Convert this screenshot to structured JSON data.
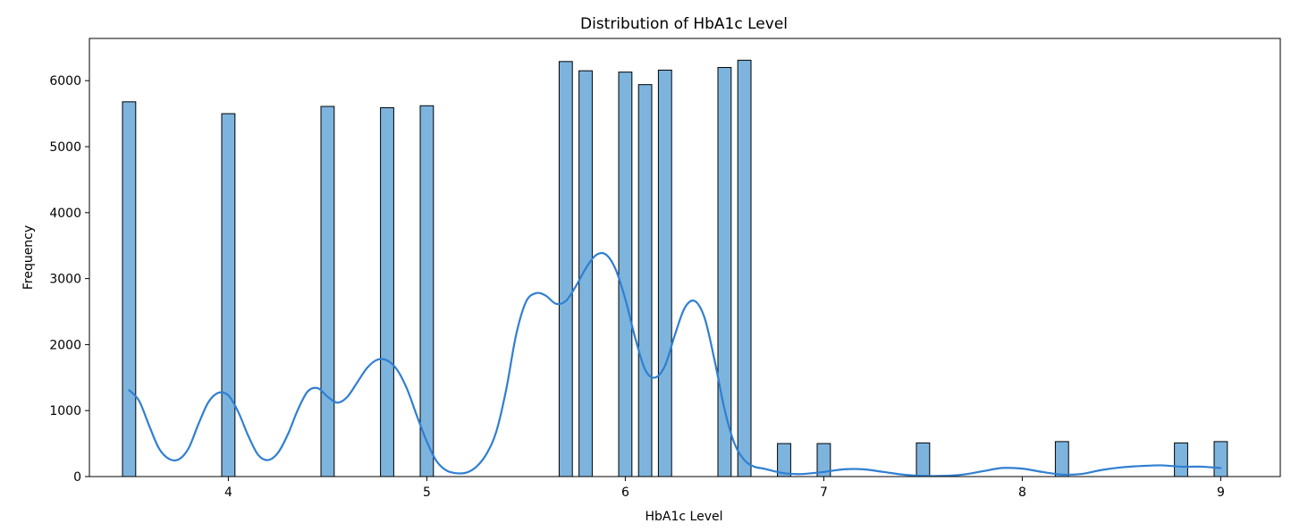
{
  "chart_data": {
    "type": "bar",
    "title": "Distribution of HbA1c Level",
    "xlabel": "HbA1c Level",
    "ylabel": "Frequency",
    "xlim": [
      3.3,
      9.3
    ],
    "ylim": [
      0,
      6640
    ],
    "xticks": [
      4,
      5,
      6,
      7,
      8,
      9
    ],
    "yticks": [
      0,
      1000,
      2000,
      3000,
      4000,
      5000,
      6000
    ],
    "grid": false,
    "legend": "none",
    "bin_width": 0.0667,
    "bar_color": "#7db4de",
    "bar_edge_color": "#000000",
    "kde_color": "#2f7fd1",
    "bars": [
      {
        "x": 3.5,
        "value": 5680
      },
      {
        "x": 4.0,
        "value": 5500
      },
      {
        "x": 4.5,
        "value": 5610
      },
      {
        "x": 4.8,
        "value": 5590
      },
      {
        "x": 5.0,
        "value": 5620
      },
      {
        "x": 5.7,
        "value": 6290
      },
      {
        "x": 5.8,
        "value": 6150
      },
      {
        "x": 6.0,
        "value": 6130
      },
      {
        "x": 6.1,
        "value": 5940
      },
      {
        "x": 6.2,
        "value": 6160
      },
      {
        "x": 6.5,
        "value": 6200
      },
      {
        "x": 6.6,
        "value": 6310
      },
      {
        "x": 6.8,
        "value": 500
      },
      {
        "x": 7.0,
        "value": 500
      },
      {
        "x": 7.5,
        "value": 510
      },
      {
        "x": 8.2,
        "value": 530
      },
      {
        "x": 8.8,
        "value": 510
      },
      {
        "x": 9.0,
        "value": 530
      }
    ],
    "kde": {
      "x": [
        3.5,
        3.55,
        3.6,
        3.65,
        3.7,
        3.75,
        3.8,
        3.85,
        3.9,
        3.95,
        4.0,
        4.05,
        4.1,
        4.15,
        4.2,
        4.25,
        4.3,
        4.35,
        4.4,
        4.45,
        4.5,
        4.55,
        4.6,
        4.65,
        4.7,
        4.75,
        4.8,
        4.85,
        4.9,
        4.95,
        5.0,
        5.05,
        5.1,
        5.15,
        5.2,
        5.25,
        5.3,
        5.35,
        5.4,
        5.45,
        5.5,
        5.55,
        5.6,
        5.65,
        5.7,
        5.75,
        5.8,
        5.85,
        5.9,
        5.95,
        6.0,
        6.05,
        6.1,
        6.15,
        6.2,
        6.25,
        6.3,
        6.35,
        6.4,
        6.45,
        6.5,
        6.55,
        6.6,
        6.65,
        6.7,
        6.75,
        6.8,
        6.85,
        6.9,
        7.0,
        7.1,
        7.2,
        7.3,
        7.4,
        7.5,
        7.6,
        7.7,
        7.8,
        7.9,
        8.0,
        8.1,
        8.2,
        8.3,
        8.4,
        8.5,
        8.6,
        8.7,
        8.8,
        8.9,
        9.0
      ],
      "y": [
        1310,
        1150,
        780,
        430,
        270,
        260,
        430,
        800,
        1130,
        1270,
        1230,
        980,
        620,
        330,
        250,
        360,
        640,
        1010,
        1290,
        1340,
        1210,
        1120,
        1210,
        1430,
        1650,
        1770,
        1760,
        1620,
        1330,
        920,
        530,
        230,
        90,
        50,
        60,
        150,
        340,
        680,
        1320,
        2150,
        2650,
        2780,
        2740,
        2620,
        2660,
        2880,
        3150,
        3350,
        3370,
        3150,
        2690,
        2100,
        1620,
        1500,
        1680,
        2150,
        2560,
        2660,
        2400,
        1760,
        1020,
        500,
        250,
        150,
        120,
        80,
        50,
        40,
        40,
        70,
        110,
        110,
        70,
        30,
        10,
        10,
        30,
        80,
        130,
        120,
        70,
        30,
        40,
        100,
        140,
        160,
        170,
        150,
        150,
        130
      ]
    }
  }
}
